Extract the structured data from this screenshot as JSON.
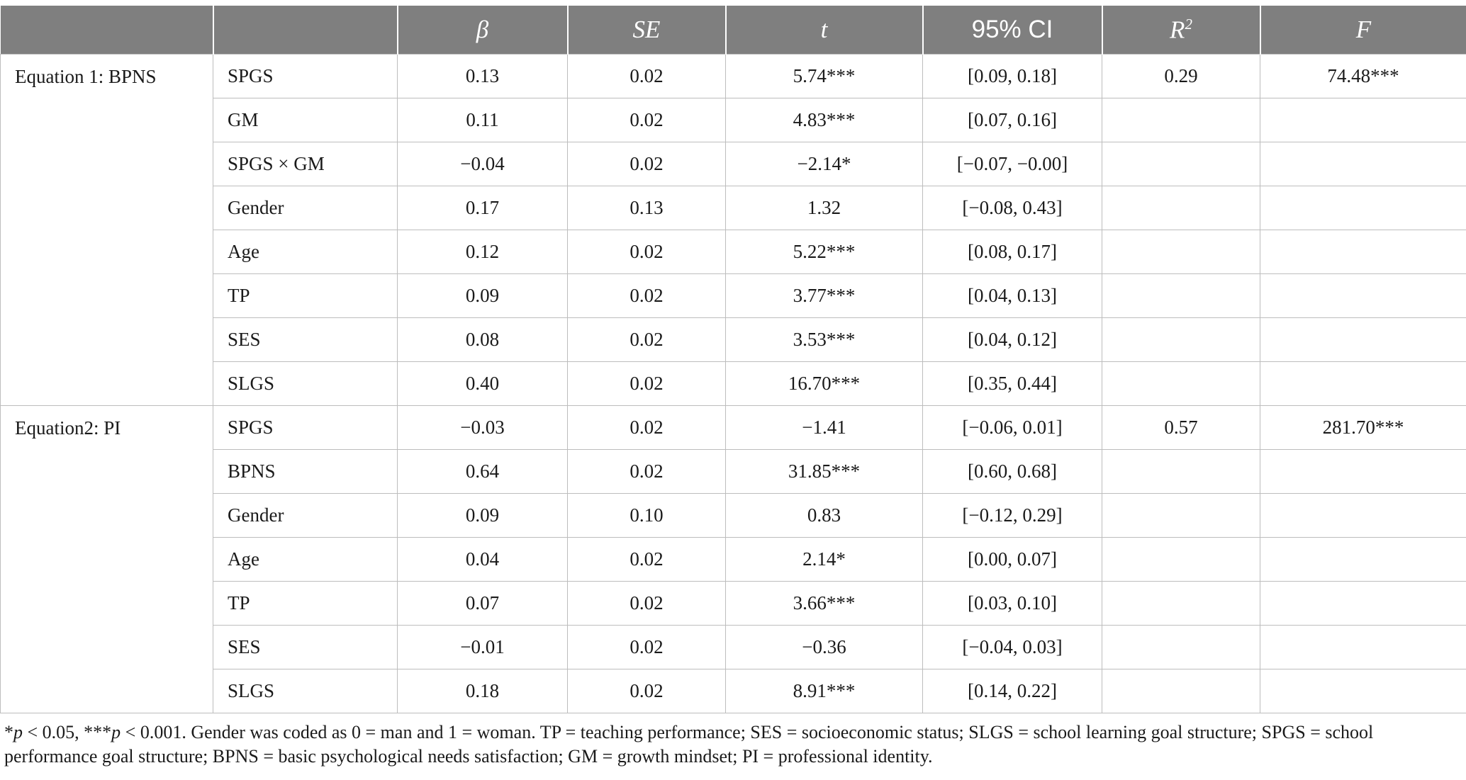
{
  "columns": [
    "",
    "",
    "β",
    "SE",
    "t",
    "95% CI",
    "R",
    "F"
  ],
  "r2_exponent": "2",
  "groups": [
    {
      "label": "Equation 1: BPNS",
      "r2": "0.29",
      "f": "74.48***",
      "rows": [
        {
          "var": "SPGS",
          "beta": "0.13",
          "se": "0.02",
          "t": "5.74***",
          "ci": "[0.09, 0.18]"
        },
        {
          "var": "GM",
          "beta": "0.11",
          "se": "0.02",
          "t": "4.83***",
          "ci": "[0.07, 0.16]"
        },
        {
          "var": "SPGS × GM",
          "beta": "−0.04",
          "se": "0.02",
          "t": "−2.14*",
          "ci": "[−0.07, −0.00]"
        },
        {
          "var": "Gender",
          "beta": "0.17",
          "se": "0.13",
          "t": "1.32",
          "ci": "[−0.08, 0.43]"
        },
        {
          "var": "Age",
          "beta": "0.12",
          "se": "0.02",
          "t": "5.22***",
          "ci": "[0.08, 0.17]"
        },
        {
          "var": "TP",
          "beta": "0.09",
          "se": "0.02",
          "t": "3.77***",
          "ci": "[0.04, 0.13]"
        },
        {
          "var": "SES",
          "beta": "0.08",
          "se": "0.02",
          "t": "3.53***",
          "ci": "[0.04, 0.12]"
        },
        {
          "var": "SLGS",
          "beta": "0.40",
          "se": "0.02",
          "t": "16.70***",
          "ci": "[0.35, 0.44]"
        }
      ]
    },
    {
      "label": "Equation2: PI",
      "r2": "0.57",
      "f": "281.70***",
      "rows": [
        {
          "var": "SPGS",
          "beta": "−0.03",
          "se": "0.02",
          "t": "−1.41",
          "ci": "[−0.06, 0.01]"
        },
        {
          "var": "BPNS",
          "beta": "0.64",
          "se": "0.02",
          "t": "31.85***",
          "ci": "[0.60, 0.68]"
        },
        {
          "var": "Gender",
          "beta": "0.09",
          "se": "0.10",
          "t": "0.83",
          "ci": "[−0.12, 0.29]"
        },
        {
          "var": "Age",
          "beta": "0.04",
          "se": "0.02",
          "t": "2.14*",
          "ci": "[0.00, 0.07]"
        },
        {
          "var": "TP",
          "beta": "0.07",
          "se": "0.02",
          "t": "3.66***",
          "ci": "[0.03, 0.10]"
        },
        {
          "var": "SES",
          "beta": "−0.01",
          "se": "0.02",
          "t": "−0.36",
          "ci": "[−0.04, 0.03]"
        },
        {
          "var": "SLGS",
          "beta": "0.18",
          "se": "0.02",
          "t": "8.91***",
          "ci": "[0.14, 0.22]"
        }
      ]
    }
  ],
  "note": {
    "star1": "*",
    "p1": "p",
    "text1": " < 0.05, ***",
    "p2": "p",
    "text2": " < 0.001. Gender was coded as 0 = man and 1 = woman. TP = teaching performance; SES = socioeconomic status; SLGS = school learning goal structure; SPGS = school performance goal structure; BPNS = basic psychological needs satisfaction; GM = growth mindset; PI = professional identity."
  }
}
